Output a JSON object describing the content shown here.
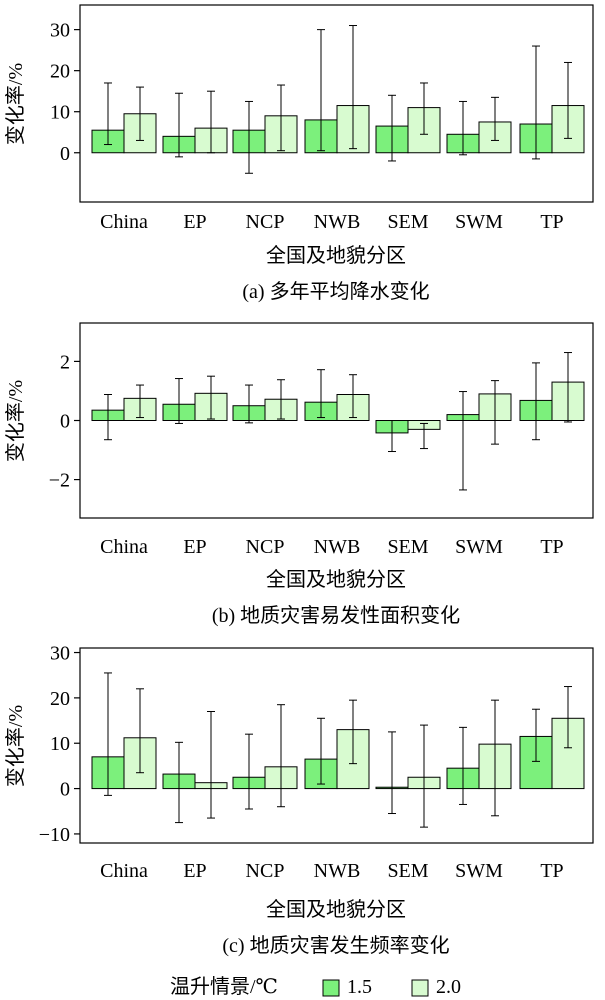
{
  "colors": {
    "scenario_1_5": "#7cf07c",
    "scenario_2_0": "#d8fbd0",
    "axis": "#000000"
  },
  "legend": {
    "title": "温升情景/℃",
    "items": [
      "1.5",
      "2.0"
    ]
  },
  "chart_data": [
    {
      "type": "bar",
      "title": "(a) 多年平均降水变化",
      "xlabel": "全国及地貌分区",
      "ylabel": "变化率/%",
      "categories": [
        "China",
        "EP",
        "NCP",
        "NWB",
        "SEM",
        "SWM",
        "TP"
      ],
      "ylim": [
        -12,
        36
      ],
      "yticks": [
        0,
        10,
        20,
        30
      ],
      "series": [
        {
          "name": "1.5",
          "values": [
            5.5,
            4.0,
            5.5,
            8.0,
            6.5,
            4.5,
            7.0
          ],
          "err_low": [
            2.0,
            -1.0,
            -5.0,
            0.5,
            -2.0,
            -0.5,
            -1.5
          ],
          "err_high": [
            17.0,
            14.5,
            12.5,
            30.0,
            14.0,
            12.5,
            26.0
          ]
        },
        {
          "name": "2.0",
          "values": [
            9.5,
            6.0,
            9.0,
            11.5,
            11.0,
            7.5,
            11.5
          ],
          "err_low": [
            3.0,
            0.0,
            0.5,
            1.0,
            4.5,
            3.0,
            3.5
          ],
          "err_high": [
            16.0,
            15.0,
            16.5,
            31.0,
            17.0,
            13.5,
            22.0
          ]
        }
      ]
    },
    {
      "type": "bar",
      "title": "(b) 地质灾害易发性面积变化",
      "xlabel": "全国及地貌分区",
      "ylabel": "变化率/%",
      "categories": [
        "China",
        "EP",
        "NCP",
        "NWB",
        "SEM",
        "SWM",
        "TP"
      ],
      "ylim": [
        -3.3,
        3.3
      ],
      "yticks": [
        -2,
        0,
        2
      ],
      "series": [
        {
          "name": "1.5",
          "values": [
            0.35,
            0.55,
            0.5,
            0.62,
            -0.42,
            0.2,
            0.68
          ],
          "err_low": [
            -0.65,
            -0.1,
            -0.08,
            0.1,
            -1.05,
            -2.35,
            -0.65
          ],
          "err_high": [
            0.88,
            1.42,
            1.2,
            1.72,
            0.0,
            0.98,
            1.95
          ]
        },
        {
          "name": "2.0",
          "values": [
            0.75,
            0.92,
            0.72,
            0.88,
            -0.3,
            0.9,
            1.3
          ],
          "err_low": [
            0.1,
            0.05,
            0.05,
            0.1,
            -0.95,
            -0.8,
            -0.05
          ],
          "err_high": [
            1.2,
            1.5,
            1.38,
            1.55,
            -0.1,
            1.35,
            2.3
          ]
        }
      ]
    },
    {
      "type": "bar",
      "title": "(c) 地质灾害发生频率变化",
      "xlabel": "全国及地貌分区",
      "ylabel": "变化率/%",
      "categories": [
        "China",
        "EP",
        "NCP",
        "NWB",
        "SEM",
        "SWM",
        "TP"
      ],
      "ylim": [
        -12,
        31
      ],
      "yticks": [
        -10,
        0,
        10,
        20,
        30
      ],
      "series": [
        {
          "name": "1.5",
          "values": [
            7.0,
            3.2,
            2.5,
            6.5,
            0.3,
            4.5,
            11.5
          ],
          "err_low": [
            -1.5,
            -7.5,
            -4.5,
            1.0,
            -5.5,
            -3.5,
            6.0
          ],
          "err_high": [
            25.5,
            10.2,
            12.0,
            15.5,
            12.5,
            13.5,
            17.5
          ]
        },
        {
          "name": "2.0",
          "values": [
            11.2,
            1.3,
            4.8,
            13.0,
            2.5,
            9.8,
            15.5
          ],
          "err_low": [
            3.5,
            -6.5,
            -4.0,
            5.5,
            -8.5,
            -6.0,
            9.0
          ],
          "err_high": [
            22.0,
            17.0,
            18.5,
            19.5,
            14.0,
            19.5,
            22.5
          ]
        }
      ]
    }
  ]
}
